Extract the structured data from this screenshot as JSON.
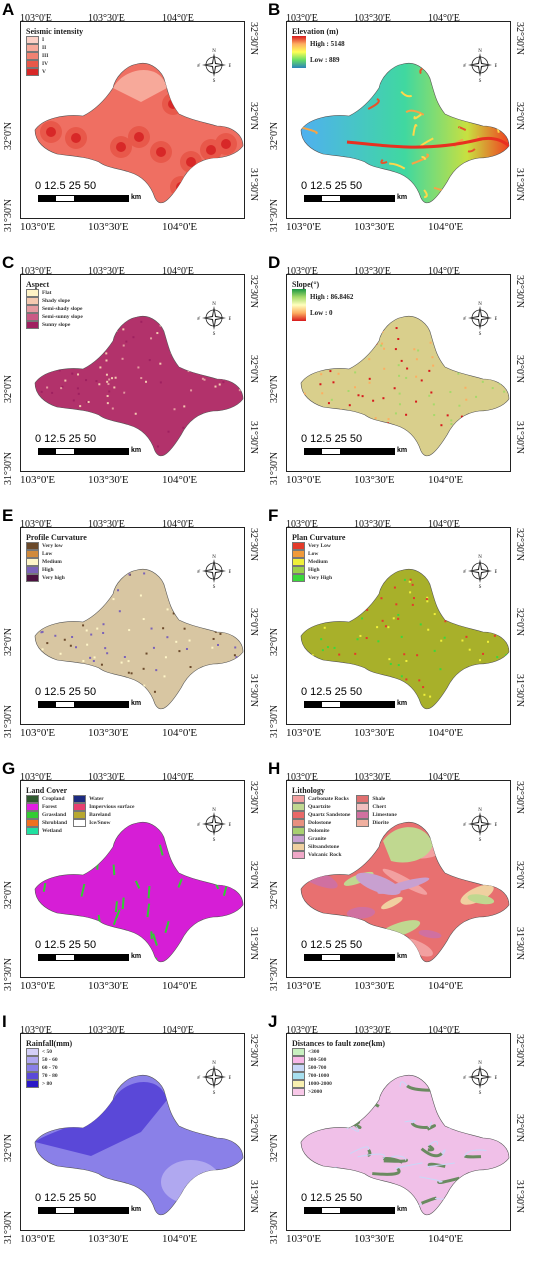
{
  "axes": {
    "top": [
      "103°0'E",
      "103°30'E",
      "104°0'E"
    ],
    "bottom": [
      "103°0'E",
      "103°30'E",
      "104°0'E"
    ],
    "left": [
      "32°0'N",
      "31°30'N"
    ],
    "right": [
      "32°30'N",
      "32°0'N",
      "31°30'N"
    ]
  },
  "scale": {
    "nums": "0  12.5 25        50",
    "unit": "km"
  },
  "compass": {
    "n": "N",
    "s": "S",
    "e": "E",
    "w": "W"
  },
  "panels": [
    {
      "label": "A",
      "kind": "classes",
      "title": "Seismic intensity",
      "fill": "#ef6f62",
      "items": [
        {
          "t": "I",
          "c": "#fbd0c6"
        },
        {
          "t": "II",
          "c": "#f7a99a"
        },
        {
          "t": "III",
          "c": "#f18272"
        },
        {
          "t": "IV",
          "c": "#e8584a"
        },
        {
          "t": "V",
          "c": "#d82828"
        }
      ]
    },
    {
      "label": "B",
      "kind": "ramp",
      "title": "Elevation (m)",
      "fill": "#3fbcd8",
      "high": "High : 5148",
      "low": "Low : 889",
      "ramp": [
        "#d7191c",
        "#fdae61",
        "#ffff55",
        "#66dd66",
        "#2b83ba"
      ]
    },
    {
      "label": "C",
      "kind": "classes",
      "title": "Aspect",
      "fill": "#b2326b",
      "items": [
        {
          "t": "Flat",
          "c": "#fff3c6"
        },
        {
          "t": "Shady slope",
          "c": "#f4c9b0"
        },
        {
          "t": "Semi-shady slope",
          "c": "#e49aa0"
        },
        {
          "t": "Semi-sunny slope",
          "c": "#c95a85"
        },
        {
          "t": "Sunny slope",
          "c": "#9f2060"
        }
      ]
    },
    {
      "label": "D",
      "kind": "ramp",
      "title": "Slope(°)",
      "fill": "#d9cf8c",
      "high": "High : 86.8462",
      "low": "Low : 0",
      "ramp": [
        "#1a9641",
        "#a6d96a",
        "#ffffbf",
        "#fdae61",
        "#d7191c"
      ]
    },
    {
      "label": "E",
      "kind": "classes",
      "title": "Profile Curvature",
      "fill": "#d8c6a2",
      "items": [
        {
          "t": "Very low",
          "c": "#6b4a2b"
        },
        {
          "t": "Low",
          "c": "#d08a3c"
        },
        {
          "t": "Medium",
          "c": "#fff6c8"
        },
        {
          "t": "High",
          "c": "#7b62b8"
        },
        {
          "t": "Very high",
          "c": "#4b1040"
        }
      ]
    },
    {
      "label": "F",
      "kind": "classes",
      "title": "Plan Curvature",
      "fill": "#a8b02a",
      "items": [
        {
          "t": "Very Low",
          "c": "#e43a2a"
        },
        {
          "t": "Low",
          "c": "#f09a3a"
        },
        {
          "t": "Medium",
          "c": "#f0f03a"
        },
        {
          "t": "High",
          "c": "#9ad04a"
        },
        {
          "t": "Very High",
          "c": "#3ad83a"
        }
      ]
    },
    {
      "label": "G",
      "kind": "landcover",
      "title": "Land Cover",
      "fill": "#d61ed6",
      "items": [
        {
          "t": "Cropland",
          "c": "#2f5a2f"
        },
        {
          "t": "Forest",
          "c": "#e21ee2"
        },
        {
          "t": "Grassland",
          "c": "#33cc33"
        },
        {
          "t": "Shrubland",
          "c": "#f07020"
        },
        {
          "t": "Wetland",
          "c": "#20e0a0"
        }
      ],
      "items2": [
        {
          "t": "Water",
          "c": "#1c2a80"
        },
        {
          "t": "Impervious surface",
          "c": "#e84070"
        },
        {
          "t": "Bareland",
          "c": "#b8a830"
        },
        {
          "t": "Ice/Snow",
          "c": "#ffffff"
        }
      ]
    },
    {
      "label": "H",
      "kind": "lithology",
      "title": "Lithology",
      "fill": "#e87070",
      "items": [
        {
          "t": "Carbonate Rocks",
          "c": "#f2a0a0"
        },
        {
          "t": "Quartzite",
          "c": "#c0d890"
        },
        {
          "t": "Quartz Sandstone",
          "c": "#e86868"
        },
        {
          "t": "Dolostone",
          "c": "#e89080"
        },
        {
          "t": "Dolomite",
          "c": "#a8d070"
        },
        {
          "t": "Granite",
          "c": "#c8a0d0"
        },
        {
          "t": "Siltsandstone",
          "c": "#f0d0a0"
        },
        {
          "t": "Volcanic Rock",
          "c": "#f0a8c8"
        }
      ],
      "items2": [
        {
          "t": "Shale",
          "c": "#e07070"
        },
        {
          "t": "Chert",
          "c": "#f0c0c0"
        },
        {
          "t": "Limestone",
          "c": "#d070a0"
        },
        {
          "t": "Diorite",
          "c": "#f0b0a0"
        }
      ]
    },
    {
      "label": "I",
      "kind": "classes",
      "title": "Rainfall(mm)",
      "fill": "#8a80e8",
      "items": [
        {
          "t": "< 50",
          "c": "#d4d0f8"
        },
        {
          "t": "50 - 60",
          "c": "#b0a8f0"
        },
        {
          "t": "60 - 70",
          "c": "#8a80e8"
        },
        {
          "t": "70 - 80",
          "c": "#5a48d8"
        },
        {
          "t": "> 80",
          "c": "#2a18c8"
        }
      ]
    },
    {
      "label": "J",
      "kind": "classes",
      "title": "Distances to fault zone(km)",
      "fill": "#f0c0e8",
      "items": [
        {
          "t": "<300",
          "c": "#c8f0c0"
        },
        {
          "t": "300-500",
          "c": "#f8b8e8"
        },
        {
          "t": "500-700",
          "c": "#c8d8f8"
        },
        {
          "t": "700-1000",
          "c": "#a8e0f0"
        },
        {
          "t": "1000-2000",
          "c": "#f8f0b0"
        },
        {
          "t": ">2000",
          "c": "#f8c8e8"
        }
      ]
    }
  ]
}
